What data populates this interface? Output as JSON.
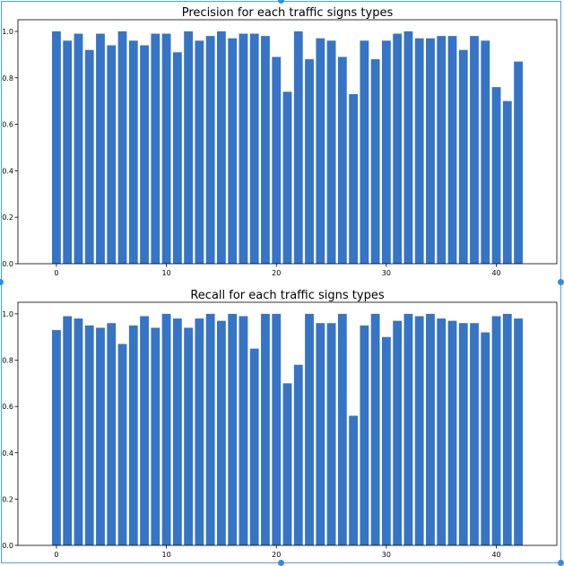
{
  "chart_data": [
    {
      "type": "bar",
      "title": "Precision for each traffic signs types",
      "xlabel": "",
      "ylabel": "",
      "x": [
        0,
        1,
        2,
        3,
        4,
        5,
        6,
        7,
        8,
        9,
        10,
        11,
        12,
        13,
        14,
        15,
        16,
        17,
        18,
        19,
        20,
        21,
        22,
        23,
        24,
        25,
        26,
        27,
        28,
        29,
        30,
        31,
        32,
        33,
        34,
        35,
        36,
        37,
        38,
        39,
        40,
        41,
        42
      ],
      "values": [
        1.0,
        0.96,
        0.99,
        0.92,
        0.99,
        0.94,
        1.0,
        0.96,
        0.94,
        0.99,
        0.99,
        0.91,
        1.0,
        0.96,
        0.98,
        1.0,
        0.97,
        0.99,
        0.99,
        0.98,
        0.89,
        0.74,
        1.0,
        0.88,
        0.97,
        0.96,
        0.89,
        0.73,
        0.96,
        0.88,
        0.96,
        0.99,
        1.0,
        0.97,
        0.97,
        0.98,
        0.98,
        0.92,
        0.98,
        0.96,
        0.76,
        0.7,
        0.87
      ],
      "xlim": [
        -3.5,
        45.5
      ],
      "ylim": [
        0,
        1.05
      ],
      "xticks": [
        0,
        10,
        20,
        30,
        40
      ],
      "xtick_labels": [
        "0",
        "10",
        "20",
        "30",
        "40"
      ],
      "yticks": [
        0,
        0.2,
        0.4,
        0.6,
        0.8,
        1.0
      ],
      "ytick_labels": [
        "0.0",
        "0.2",
        "0.4",
        "0.6",
        "0.8",
        "1.0"
      ],
      "color": "#3674c6"
    },
    {
      "type": "bar",
      "title": "Recall for each traffic signs types",
      "xlabel": "",
      "ylabel": "",
      "x": [
        0,
        1,
        2,
        3,
        4,
        5,
        6,
        7,
        8,
        9,
        10,
        11,
        12,
        13,
        14,
        15,
        16,
        17,
        18,
        19,
        20,
        21,
        22,
        23,
        24,
        25,
        26,
        27,
        28,
        29,
        30,
        31,
        32,
        33,
        34,
        35,
        36,
        37,
        38,
        39,
        40,
        41,
        42
      ],
      "values": [
        0.93,
        0.99,
        0.98,
        0.95,
        0.94,
        0.96,
        0.87,
        0.95,
        0.99,
        0.94,
        1.0,
        0.98,
        0.94,
        0.98,
        1.0,
        0.97,
        1.0,
        0.99,
        0.85,
        1.0,
        1.0,
        0.7,
        0.78,
        1.0,
        0.96,
        0.96,
        1.0,
        0.56,
        0.95,
        1.0,
        0.9,
        0.97,
        1.0,
        0.99,
        1.0,
        0.98,
        0.97,
        0.96,
        0.96,
        0.92,
        0.99,
        1.0,
        0.98
      ],
      "xlim": [
        -3.5,
        45.5
      ],
      "ylim": [
        0,
        1.05
      ],
      "xticks": [
        0,
        10,
        20,
        30,
        40
      ],
      "xtick_labels": [
        "0",
        "10",
        "20",
        "30",
        "40"
      ],
      "yticks": [
        0,
        0.2,
        0.4,
        0.6,
        0.8,
        1.0
      ],
      "ytick_labels": [
        "0.0",
        "0.2",
        "0.4",
        "0.6",
        "0.8",
        "1.0"
      ],
      "color": "#3674c6"
    }
  ]
}
